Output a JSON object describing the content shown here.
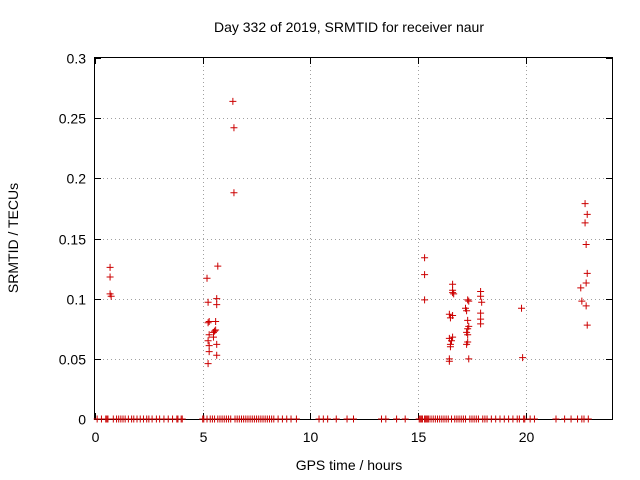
{
  "chart_data": {
    "type": "scatter",
    "title": "Day 332 of 2019, SRMTID for receiver naur",
    "xlabel": "GPS time / hours",
    "ylabel": "SRMTID / TECUs",
    "xlim": [
      0,
      24
    ],
    "ylim": [
      0,
      0.3
    ],
    "xticks": [
      0,
      5,
      10,
      15,
      20
    ],
    "xtick_labels": [
      "0",
      "5",
      "10",
      "15",
      "20"
    ],
    "yticks": [
      0,
      0.05,
      0.1,
      0.15,
      0.2,
      0.25,
      0.3
    ],
    "ytick_labels": [
      "0",
      "0.05",
      "0.1",
      "0.15",
      "0.2",
      "0.25",
      "0.3"
    ],
    "grid": true,
    "marker": "+",
    "color": "#cc0000",
    "series": [
      {
        "name": "SRMTID",
        "points": [
          [
            0.7,
            0.126
          ],
          [
            0.7,
            0.118
          ],
          [
            0.7,
            0.104
          ],
          [
            0.75,
            0.102
          ],
          [
            5.2,
            0.117
          ],
          [
            5.25,
            0.097
          ],
          [
            5.25,
            0.08
          ],
          [
            5.3,
            0.081
          ],
          [
            5.3,
            0.07
          ],
          [
            5.25,
            0.065
          ],
          [
            5.3,
            0.061
          ],
          [
            5.3,
            0.056
          ],
          [
            5.25,
            0.046
          ],
          [
            5.5,
            0.068
          ],
          [
            5.5,
            0.072
          ],
          [
            5.55,
            0.073
          ],
          [
            5.6,
            0.074
          ],
          [
            5.6,
            0.081
          ],
          [
            5.65,
            0.095
          ],
          [
            5.65,
            0.1
          ],
          [
            5.7,
            0.127
          ],
          [
            5.65,
            0.062
          ],
          [
            5.65,
            0.053
          ],
          [
            6.4,
            0.264
          ],
          [
            6.45,
            0.242
          ],
          [
            6.45,
            0.188
          ],
          [
            15.3,
            0.134
          ],
          [
            15.3,
            0.12
          ],
          [
            15.3,
            0.099
          ],
          [
            16.45,
            0.087
          ],
          [
            16.5,
            0.084
          ],
          [
            16.45,
            0.067
          ],
          [
            16.5,
            0.062
          ],
          [
            16.5,
            0.06
          ],
          [
            16.45,
            0.05
          ],
          [
            16.45,
            0.048
          ],
          [
            16.6,
            0.112
          ],
          [
            16.6,
            0.107
          ],
          [
            16.6,
            0.105
          ],
          [
            16.65,
            0.104
          ],
          [
            16.6,
            0.086
          ],
          [
            16.6,
            0.068
          ],
          [
            16.55,
            0.065
          ],
          [
            17.2,
            0.092
          ],
          [
            17.25,
            0.09
          ],
          [
            17.3,
            0.099
          ],
          [
            17.35,
            0.098
          ],
          [
            17.3,
            0.082
          ],
          [
            17.35,
            0.077
          ],
          [
            17.3,
            0.075
          ],
          [
            17.25,
            0.072
          ],
          [
            17.3,
            0.07
          ],
          [
            17.3,
            0.064
          ],
          [
            17.25,
            0.062
          ],
          [
            17.35,
            0.05
          ],
          [
            17.9,
            0.106
          ],
          [
            17.9,
            0.102
          ],
          [
            17.95,
            0.097
          ],
          [
            17.9,
            0.088
          ],
          [
            17.9,
            0.083
          ],
          [
            17.9,
            0.079
          ],
          [
            19.8,
            0.092
          ],
          [
            19.85,
            0.051
          ],
          [
            22.55,
            0.109
          ],
          [
            22.6,
            0.098
          ],
          [
            22.75,
            0.179
          ],
          [
            22.85,
            0.17
          ],
          [
            22.75,
            0.163
          ],
          [
            22.8,
            0.145
          ],
          [
            22.85,
            0.121
          ],
          [
            22.8,
            0.113
          ],
          [
            22.8,
            0.094
          ],
          [
            22.85,
            0.078
          ]
        ],
        "zero_times": [
          0.1,
          0.3,
          0.5,
          0.55,
          0.6,
          0.85,
          1.0,
          1.1,
          1.2,
          1.3,
          1.4,
          1.55,
          1.7,
          1.8,
          1.95,
          2.1,
          2.25,
          2.4,
          2.5,
          2.65,
          2.85,
          3.0,
          3.2,
          3.4,
          3.6,
          3.8,
          3.85,
          4.0,
          4.05,
          5.0,
          5.05,
          5.2,
          5.35,
          5.45,
          5.55,
          5.7,
          5.8,
          5.9,
          6.0,
          6.1,
          6.2,
          6.3,
          6.5,
          6.6,
          6.7,
          6.8,
          6.9,
          7.0,
          7.1,
          7.2,
          7.3,
          7.4,
          7.5,
          7.6,
          7.7,
          7.8,
          7.9,
          8.0,
          8.1,
          8.2,
          8.3,
          8.5,
          8.7,
          8.9,
          9.1,
          9.35,
          10.4,
          10.6,
          10.8,
          11.2,
          11.7,
          12.0,
          13.3,
          13.5,
          14.0,
          14.4,
          15.05,
          15.1,
          15.15,
          15.2,
          15.3,
          15.35,
          15.4,
          15.45,
          15.5,
          15.6,
          15.7,
          15.8,
          15.9,
          16.0,
          16.1,
          16.2,
          16.3,
          16.4,
          16.55,
          16.7,
          16.8,
          16.9,
          17.0,
          17.1,
          17.2,
          17.4,
          17.5,
          17.6,
          17.7,
          17.8,
          18.0,
          18.1,
          18.2,
          18.4,
          18.6,
          18.8,
          19.0,
          19.2,
          19.4,
          19.6,
          19.7,
          19.9,
          19.95,
          20.2,
          20.4,
          21.4,
          21.8,
          22.1,
          22.4,
          22.6,
          22.7,
          22.9
        ]
      }
    ]
  }
}
